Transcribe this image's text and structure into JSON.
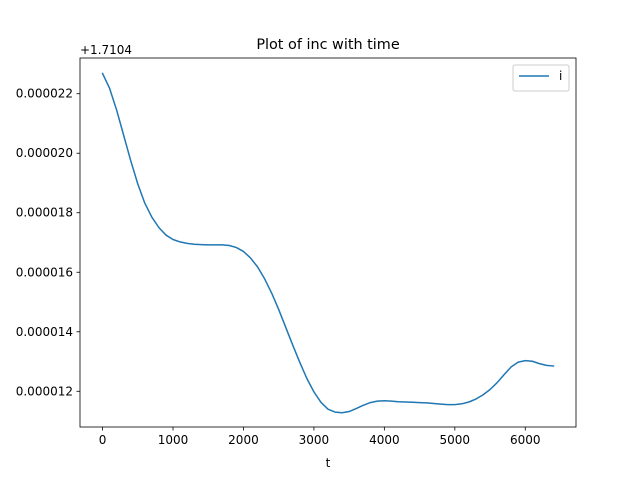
{
  "chart_data": {
    "type": "line",
    "title": "Plot of inc with time",
    "xlabel": "t",
    "ylabel": "",
    "offset_text": "+1.7104",
    "xlim": [
      -320,
      6720
    ],
    "ylim": [
      1.08e-05,
      2.32e-05
    ],
    "x_ticks": [
      0,
      1000,
      2000,
      3000,
      4000,
      5000,
      6000
    ],
    "x_tick_labels": [
      "0",
      "1000",
      "2000",
      "3000",
      "4000",
      "5000",
      "6000"
    ],
    "y_ticks": [
      1.2e-05,
      1.4e-05,
      1.6e-05,
      1.8e-05,
      2e-05,
      2.2e-05
    ],
    "y_tick_labels": [
      "0.000012",
      "0.000014",
      "0.000016",
      "0.000018",
      "0.000020",
      "0.000022"
    ],
    "grid": false,
    "legend_position": "top-right",
    "color": "#1f77b4",
    "series": [
      {
        "name": "i",
        "x": [
          0,
          100,
          200,
          300,
          400,
          500,
          600,
          700,
          800,
          900,
          1000,
          1100,
          1200,
          1300,
          1400,
          1500,
          1600,
          1700,
          1800,
          1900,
          2000,
          2100,
          2200,
          2300,
          2400,
          2500,
          2600,
          2700,
          2800,
          2900,
          3000,
          3100,
          3200,
          3300,
          3400,
          3500,
          3600,
          3700,
          3800,
          3900,
          4000,
          4100,
          4200,
          4300,
          4400,
          4500,
          4600,
          4700,
          4800,
          4900,
          5000,
          5100,
          5200,
          5300,
          5400,
          5500,
          5600,
          5700,
          5800,
          5900,
          6000,
          6100,
          6200,
          6300,
          6400
        ],
        "y": [
          2.268e-05,
          2.218e-05,
          2.145e-05,
          2.06e-05,
          1.975e-05,
          1.897e-05,
          1.832e-05,
          1.785e-05,
          1.75e-05,
          1.725e-05,
          1.71e-05,
          1.702e-05,
          1.697e-05,
          1.694e-05,
          1.693e-05,
          1.692e-05,
          1.692e-05,
          1.692e-05,
          1.69e-05,
          1.683e-05,
          1.67e-05,
          1.648e-05,
          1.618e-05,
          1.578e-05,
          1.53e-05,
          1.475e-05,
          1.415e-05,
          1.355e-05,
          1.297e-05,
          1.243e-05,
          1.198e-05,
          1.163e-05,
          1.14e-05,
          1.13e-05,
          1.128e-05,
          1.132e-05,
          1.142e-05,
          1.153e-05,
          1.162e-05,
          1.167e-05,
          1.168e-05,
          1.167e-05,
          1.165e-05,
          1.164e-05,
          1.163e-05,
          1.162e-05,
          1.161e-05,
          1.159e-05,
          1.157e-05,
          1.155e-05,
          1.155e-05,
          1.158e-05,
          1.164e-05,
          1.174e-05,
          1.188e-05,
          1.206e-05,
          1.229e-05,
          1.256e-05,
          1.282e-05,
          1.298e-05,
          1.303e-05,
          1.301e-05,
          1.293e-05,
          1.287e-05,
          1.285e-05
        ]
      }
    ]
  }
}
